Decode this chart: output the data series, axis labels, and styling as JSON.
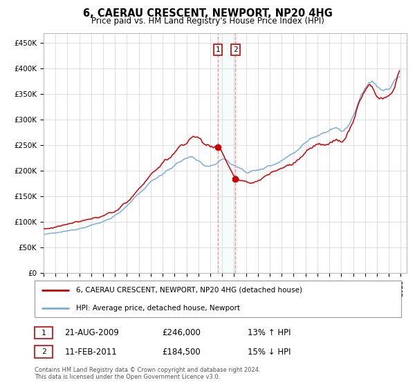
{
  "title": "6, CAERAU CRESCENT, NEWPORT, NP20 4HG",
  "subtitle": "Price paid vs. HM Land Registry's House Price Index (HPI)",
  "legend_label_red": "6, CAERAU CRESCENT, NEWPORT, NP20 4HG (detached house)",
  "legend_label_blue": "HPI: Average price, detached house, Newport",
  "footnote": "Contains HM Land Registry data © Crown copyright and database right 2024.\nThis data is licensed under the Open Government Licence v3.0.",
  "transactions": [
    {
      "label": "1",
      "date": "21-AUG-2009",
      "price": 246000,
      "hpi_pct": "13%",
      "direction": "↑"
    },
    {
      "label": "2",
      "date": "11-FEB-2011",
      "price": 184500,
      "hpi_pct": "15%",
      "direction": "↓"
    }
  ],
  "vline1_x": 2009.64,
  "vline2_x": 2011.12,
  "ylim_min": 0,
  "ylim_max": 470000,
  "xlim_min": 1995.0,
  "xlim_max": 2025.5,
  "yticks": [
    0,
    50000,
    100000,
    150000,
    200000,
    250000,
    300000,
    350000,
    400000,
    450000
  ],
  "ytick_labels": [
    "£0",
    "£50K",
    "£100K",
    "£150K",
    "£200K",
    "£250K",
    "£300K",
    "£350K",
    "£400K",
    "£450K"
  ],
  "red_color": "#cc0000",
  "blue_color": "#7aaddc",
  "vline_color": "#ff8888",
  "grid_color": "#dddddd",
  "background_color": "#ffffff",
  "blue_anchors_x": [
    1995.0,
    1996.0,
    1997.0,
    1998.0,
    1999.0,
    2000.0,
    2001.0,
    2002.0,
    2003.0,
    2004.0,
    2005.0,
    2006.0,
    2007.0,
    2007.5,
    2008.0,
    2008.5,
    2009.0,
    2009.5,
    2010.0,
    2010.5,
    2011.0,
    2011.5,
    2012.0,
    2013.0,
    2014.0,
    2015.0,
    2016.0,
    2017.0,
    2017.5,
    2018.0,
    2019.0,
    2019.5,
    2020.0,
    2020.5,
    2021.0,
    2021.5,
    2022.0,
    2022.5,
    2023.0,
    2023.5,
    2024.0,
    2024.5,
    2024.9
  ],
  "blue_anchors_y": [
    75000,
    78000,
    82000,
    87000,
    93000,
    100000,
    112000,
    130000,
    155000,
    178000,
    195000,
    210000,
    225000,
    228000,
    220000,
    210000,
    205000,
    215000,
    225000,
    218000,
    210000,
    205000,
    198000,
    200000,
    210000,
    220000,
    235000,
    255000,
    265000,
    270000,
    280000,
    285000,
    275000,
    285000,
    305000,
    335000,
    360000,
    380000,
    365000,
    355000,
    360000,
    375000,
    390000
  ],
  "red_anchors_x": [
    1995.0,
    1996.0,
    1997.0,
    1998.0,
    1999.0,
    2000.0,
    2001.0,
    2002.0,
    2003.0,
    2004.0,
    2005.0,
    2006.0,
    2007.0,
    2007.5,
    2008.0,
    2008.5,
    2009.0,
    2009.5,
    2009.64,
    2010.0,
    2010.5,
    2011.0,
    2011.12,
    2011.5,
    2012.0,
    2013.0,
    2014.0,
    2015.0,
    2016.0,
    2017.0,
    2017.5,
    2018.0,
    2019.0,
    2019.5,
    2020.0,
    2020.5,
    2021.0,
    2021.5,
    2022.0,
    2022.5,
    2023.0,
    2023.5,
    2024.0,
    2024.5,
    2024.9
  ],
  "red_anchors_y": [
    85000,
    90000,
    95000,
    100000,
    105000,
    113000,
    120000,
    138000,
    165000,
    192000,
    215000,
    235000,
    255000,
    268000,
    265000,
    255000,
    245000,
    248000,
    246000,
    240000,
    210000,
    190000,
    184500,
    180000,
    175000,
    180000,
    195000,
    205000,
    215000,
    235000,
    245000,
    250000,
    255000,
    260000,
    255000,
    270000,
    295000,
    335000,
    360000,
    370000,
    345000,
    340000,
    345000,
    360000,
    405000
  ]
}
